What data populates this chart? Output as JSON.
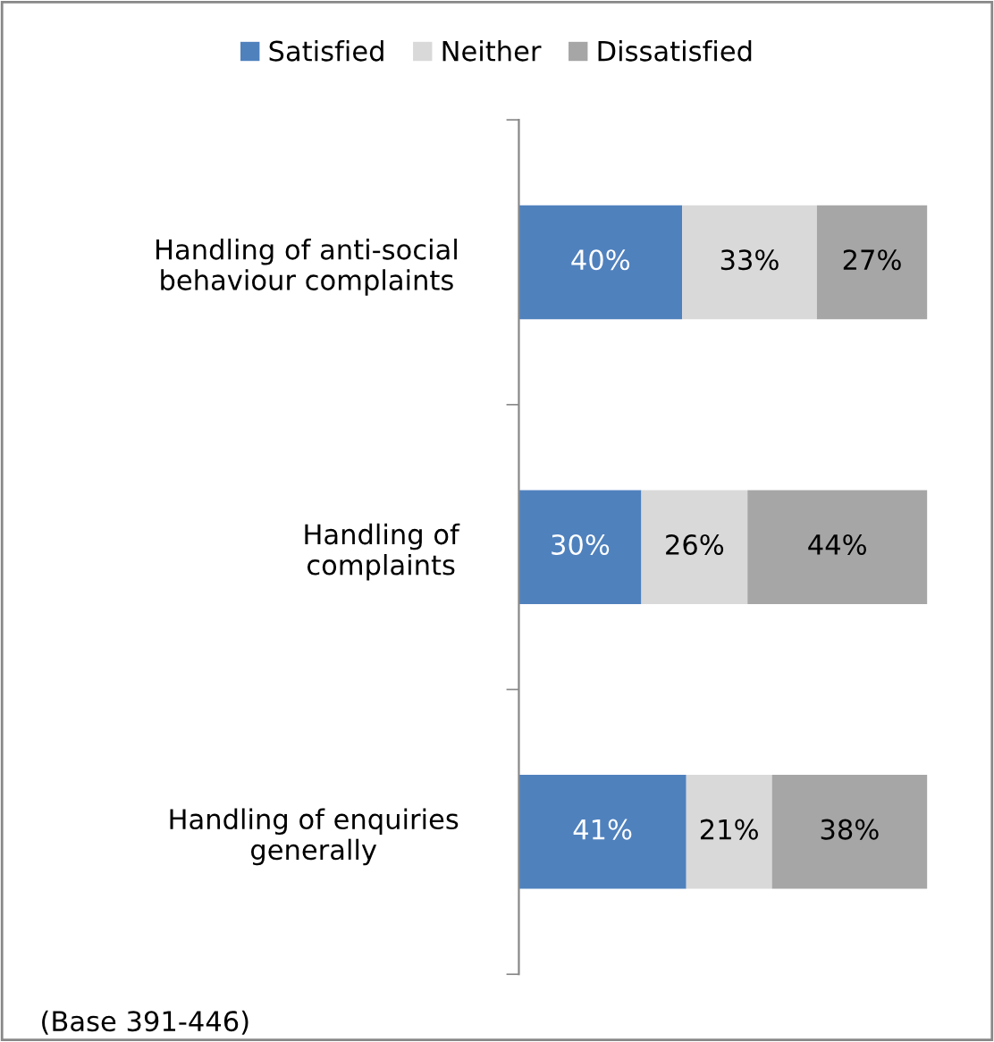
{
  "chart_data": {
    "type": "bar",
    "orientation": "horizontal",
    "stacked": true,
    "categories": [
      "Handling of anti-social\nbehaviour complaints",
      "Handling of\ncomplaints",
      "Handling of enquiries\ngenerally"
    ],
    "series": [
      {
        "name": "Satisfied",
        "color": "#4f81bd",
        "values": [
          40,
          30,
          41
        ],
        "value_labels": [
          "40%",
          "30%",
          "41%"
        ]
      },
      {
        "name": "Neither",
        "color": "#d9d9d9",
        "values": [
          33,
          26,
          21
        ],
        "value_labels": [
          "33%",
          "26%",
          "21%"
        ]
      },
      {
        "name": "Dissatisfied",
        "color": "#a6a6a6",
        "values": [
          27,
          44,
          38
        ],
        "value_labels": [
          "27%",
          "44%",
          "38%"
        ]
      }
    ],
    "legend": "top",
    "grid": false,
    "tick_labels": "y",
    "annotations": [
      "(Base 391-446)"
    ]
  }
}
